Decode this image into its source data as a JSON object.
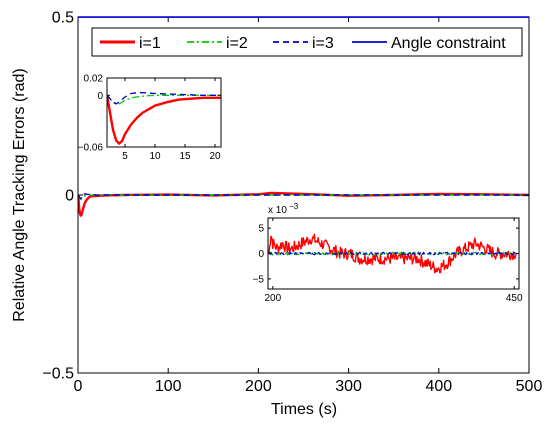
{
  "chart_data": [
    {
      "type": "line",
      "role": "main",
      "xlabel": "Times (s)",
      "ylabel": "Relative Angle Tracking Errors (rad)",
      "xlim": [
        0,
        500
      ],
      "ylim": [
        -0.5,
        0.5
      ],
      "xticks": [
        "0",
        "100",
        "200",
        "300",
        "400",
        "500"
      ],
      "yticks": [
        "−0.5",
        "0",
        "0.5"
      ],
      "legend_position": "top",
      "series": [
        {
          "name": "i=1",
          "color": "#ff0000",
          "style": "solid",
          "x": [
            0,
            0.5,
            1,
            2,
            3,
            4,
            5,
            6,
            7,
            8,
            10,
            12,
            14,
            16,
            18,
            20,
            25,
            30,
            50,
            100,
            150,
            200,
            214,
            250,
            300,
            350,
            400,
            450,
            500
          ],
          "y": [
            0,
            -0.01,
            -0.03,
            -0.05,
            -0.058,
            -0.055,
            -0.045,
            -0.035,
            -0.027,
            -0.02,
            -0.012,
            -0.007,
            -0.004,
            -0.003,
            -0.003,
            -0.003,
            -0.002,
            -0.001,
            0,
            0.001,
            -0.001,
            0.002,
            0.006,
            0.003,
            -0.002,
            0,
            0.003,
            0.002,
            0
          ]
        },
        {
          "name": "i=2",
          "color": "#00cc00",
          "style": "dashdot",
          "x": [
            0,
            1,
            2,
            3,
            4,
            5,
            6,
            8,
            10,
            14,
            20,
            30,
            100,
            200,
            300,
            400,
            500
          ],
          "y": [
            0,
            -0.005,
            -0.01,
            -0.012,
            -0.01,
            -0.006,
            -0.004,
            -0.002,
            -0.001,
            0,
            0,
            0,
            0,
            0,
            0,
            0,
            0
          ]
        },
        {
          "name": "i=3",
          "color": "#0000cc",
          "style": "dashed",
          "x": [
            0,
            1,
            2,
            3,
            4,
            5,
            6,
            8,
            10,
            14,
            20,
            30,
            100,
            200,
            300,
            400,
            500
          ],
          "y": [
            0,
            -0.003,
            -0.008,
            -0.01,
            -0.007,
            -0.002,
            0.002,
            0.003,
            0.002,
            0.001,
            0,
            0,
            0,
            0,
            0,
            0,
            0
          ]
        },
        {
          "name": "Angle constraint",
          "color": "#0000cc",
          "style": "solid",
          "x": [
            0,
            500
          ],
          "y": [
            0.5,
            0.5
          ]
        }
      ]
    },
    {
      "type": "line",
      "role": "inset-start",
      "xlim": [
        2,
        21
      ],
      "ylim": [
        -0.06,
        0.02
      ],
      "xticks": [
        "5",
        "10",
        "15",
        "20"
      ],
      "yticks": [
        "0.02",
        "0",
        "−0.06"
      ],
      "series": [
        {
          "name": "i=1",
          "color": "#ff0000",
          "style": "solid",
          "x": [
            2,
            2.5,
            3,
            3.5,
            4,
            4.5,
            5,
            6,
            7,
            8,
            9,
            10,
            12,
            14,
            16,
            18,
            20,
            21
          ],
          "y": [
            0,
            -0.02,
            -0.04,
            -0.052,
            -0.056,
            -0.053,
            -0.045,
            -0.034,
            -0.026,
            -0.02,
            -0.016,
            -0.012,
            -0.008,
            -0.005,
            -0.004,
            -0.003,
            -0.003,
            -0.003
          ]
        },
        {
          "name": "i=2",
          "color": "#00cc00",
          "style": "dashdot",
          "x": [
            2,
            3,
            4,
            5,
            6,
            8,
            10,
            14,
            18,
            21
          ],
          "y": [
            0,
            -0.008,
            -0.01,
            -0.006,
            -0.003,
            -0.001,
            0,
            0,
            0,
            0
          ]
        },
        {
          "name": "i=3",
          "color": "#0000cc",
          "style": "dashed",
          "x": [
            2,
            3,
            3.5,
            4,
            5,
            6,
            7,
            8,
            10,
            14,
            18,
            21
          ],
          "y": [
            0,
            -0.008,
            -0.01,
            -0.008,
            -0.002,
            0.002,
            0.003,
            0.003,
            0.002,
            0.001,
            0,
            0
          ]
        }
      ]
    },
    {
      "type": "line",
      "role": "inset-steady",
      "xlim": [
        195,
        455
      ],
      "ylim": [
        -7,
        7
      ],
      "exponent_label": "x 10",
      "exponent_power": "−3",
      "xticks": [
        "200",
        "450"
      ],
      "yticks": [
        "5",
        "0",
        "−5"
      ],
      "series": [
        {
          "name": "i=1",
          "color": "#ff0000",
          "style": "solid",
          "noisy": true,
          "amplitude": 1.2,
          "x": [
            196,
            198,
            200,
            205,
            210,
            215,
            220,
            230,
            240,
            250,
            260,
            270,
            280,
            290,
            300,
            310,
            320,
            330,
            340,
            350,
            360,
            370,
            380,
            390,
            400,
            410,
            420,
            430,
            440,
            450,
            452
          ],
          "y": [
            0,
            4,
            2,
            1,
            2,
            1,
            1,
            2,
            3,
            2,
            1,
            0,
            0,
            -1,
            -1,
            -1,
            -1,
            -1,
            -1,
            -1,
            -2,
            -3,
            -2,
            0,
            1,
            2,
            1,
            0,
            0,
            0,
            0
          ]
        },
        {
          "name": "i=2",
          "color": "#00cc00",
          "style": "dashdot",
          "noisy": true,
          "amplitude": 0.3,
          "x": [
            196,
            452
          ],
          "y": [
            0,
            0
          ]
        },
        {
          "name": "i=3",
          "color": "#0000cc",
          "style": "dashed",
          "noisy": true,
          "amplitude": 0.25,
          "x": [
            196,
            452
          ],
          "y": [
            0,
            0
          ]
        }
      ]
    }
  ]
}
